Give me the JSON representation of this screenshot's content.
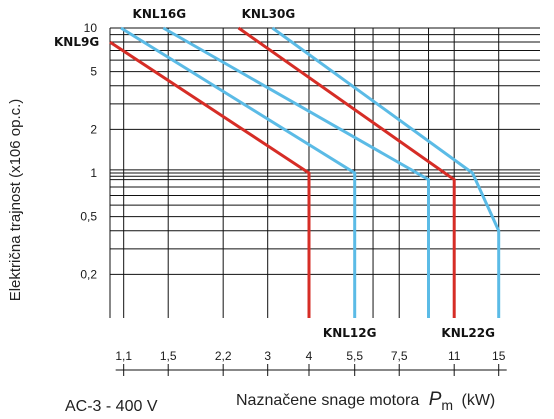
{
  "chart_data": {
    "type": "line",
    "x_scale": "log",
    "y_scale": "log",
    "xlim": [
      1.0,
      20.0
    ],
    "ylim": [
      0.1,
      10.0
    ],
    "x_tick_labels": [
      "1,1",
      "1,5",
      "2,2",
      "3",
      "4",
      "5,5",
      "7,5",
      "11",
      "15"
    ],
    "x_tick_values": [
      1.1,
      1.5,
      2.2,
      3,
      4,
      5.5,
      7.5,
      11,
      15
    ],
    "y_tick_labels": [
      "10",
      "5",
      "2",
      "1",
      "0,5",
      "0,2"
    ],
    "y_tick_values": [
      10,
      5,
      2,
      1,
      0.5,
      0.2
    ],
    "x_grid_values": [
      1.1,
      1.5,
      2.2,
      3,
      4,
      5.5,
      6.25,
      7.5,
      9.2,
      11,
      15
    ],
    "y_grid_values": [
      10,
      9,
      8,
      7,
      6,
      5,
      4,
      3,
      2,
      1.05,
      1,
      0.95,
      0.9,
      0.8,
      0.7,
      0.6,
      0.5,
      0.4,
      0.3,
      0.2
    ],
    "grid": true,
    "ylabel": "Električna trajnost (x106 op.c.)",
    "xlabel": "Naznačene snage motora Pm (kW)",
    "xlabel_prefix": "Naznačene snage motora",
    "xlabel_symbol": "P",
    "xlabel_subscript": "m",
    "xlabel_unit": "(kW)",
    "footer_left": "AC-3 - 400 V",
    "series": [
      {
        "name": "KNL9G",
        "color": "#d62d26",
        "x": [
          1.0,
          4,
          4
        ],
        "y": [
          8.0,
          1.0,
          0.1
        ]
      },
      {
        "name": "KNL12G",
        "color": "#5bbbe6",
        "x": [
          1.08,
          5.5,
          5.5
        ],
        "y": [
          10,
          1.0,
          0.1
        ]
      },
      {
        "name": "KNL16G",
        "color": "#5bbbe6",
        "x": [
          1.45,
          9.2,
          9.2
        ],
        "y": [
          10,
          0.9,
          0.1
        ]
      },
      {
        "name": "KNL22G",
        "color": "#d62d26",
        "x": [
          2.45,
          11,
          11
        ],
        "y": [
          10,
          0.9,
          0.1
        ]
      },
      {
        "name": "KNL30G",
        "color": "#5bbbe6",
        "x": [
          3.1,
          12.5,
          15,
          15
        ],
        "y": [
          10,
          1.0,
          0.4,
          0.1
        ]
      }
    ]
  }
}
